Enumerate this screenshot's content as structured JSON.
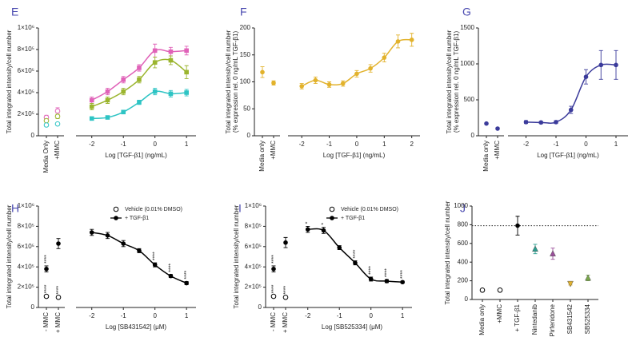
{
  "chart_data": [
    {
      "panel": "E",
      "type": "scatter",
      "ylabel": [
        "Total integrated intensity/cell number"
      ],
      "xlabel": "Log [TGF-β1] (ng/mL)",
      "control_categories": [
        "Media Only",
        "+MMC"
      ],
      "x": [
        -2,
        -1.5,
        -1,
        -0.5,
        0,
        0.5,
        1
      ],
      "xlim": [
        -2.5,
        1.3
      ],
      "xticks": [
        -2,
        -1,
        0,
        1
      ],
      "ylim": [
        0,
        1000000
      ],
      "yticks": [
        0,
        {
          "value": 200000,
          "label": "2×10⁵"
        },
        {
          "value": 400000,
          "label": "4×10⁵"
        },
        {
          "value": 600000,
          "label": "6×10⁵"
        },
        {
          "value": 800000,
          "label": "8×10⁵"
        },
        {
          "value": 1000000,
          "label": "1×10⁶"
        }
      ],
      "series": [
        {
          "color": "#e062b8",
          "marker": "square",
          "control_marker": "open-circle",
          "values": [
            330000,
            410000,
            520000,
            630000,
            790000,
            780000,
            790000
          ],
          "errors": [
            30000,
            30000,
            30000,
            30000,
            60000,
            40000,
            40000
          ],
          "control_values": [
            170000,
            230000
          ],
          "control_errors": [
            20000,
            30000
          ]
        },
        {
          "color": "#9bb52e",
          "marker": "square",
          "control_marker": "open-circle",
          "values": [
            270000,
            330000,
            410000,
            520000,
            680000,
            700000,
            590000
          ],
          "errors": [
            30000,
            30000,
            30000,
            30000,
            50000,
            40000,
            60000
          ],
          "control_values": [
            140000,
            180000
          ],
          "control_errors": [
            15000,
            20000
          ]
        },
        {
          "color": "#2ec4c4",
          "marker": "square",
          "control_marker": "open-circle",
          "values": [
            160000,
            170000,
            220000,
            310000,
            410000,
            390000,
            400000
          ],
          "errors": [
            10000,
            10000,
            15000,
            20000,
            30000,
            30000,
            30000
          ],
          "control_values": [
            100000,
            110000
          ],
          "control_errors": [
            10000,
            10000
          ]
        }
      ]
    },
    {
      "panel": "F",
      "type": "scatter",
      "ylabel": [
        "Total integrated intensity/cell number",
        "(% expression rel. 0 ng/mL TGF-β1)"
      ],
      "xlabel": "Log [TGF-β1] (ng/mL)",
      "control_categories": [
        "Media only",
        "+MMC"
      ],
      "x": [
        -2,
        -1.5,
        -1,
        -0.5,
        0,
        0.5,
        1,
        1.5,
        2
      ],
      "xlim": [
        -2.5,
        2.3
      ],
      "xticks": [
        -2,
        -1,
        0,
        1,
        2
      ],
      "ylim": [
        0,
        200
      ],
      "yticks": [
        0,
        50,
        100,
        150,
        200
      ],
      "series": [
        {
          "color": "#e2b22c",
          "marker": "circle",
          "values": [
            92,
            103,
            95,
            97,
            115,
            125,
            145,
            175,
            178
          ],
          "errors": [
            5,
            6,
            5,
            5,
            6,
            7,
            8,
            12,
            12
          ],
          "control_values": [
            118,
            98
          ],
          "control_errors": [
            10,
            4
          ]
        }
      ]
    },
    {
      "panel": "G",
      "type": "scatter",
      "ylabel": [
        "Total integrated intensity/cell number",
        "(% expression rel. 0 ng/mL TGF-β1)"
      ],
      "xlabel": "Log [TGF-β1] (ng/mL)",
      "control_categories": [
        "Media only",
        "+MMC"
      ],
      "x": [
        -2,
        -1.5,
        -1,
        -0.5,
        0,
        0.5,
        1
      ],
      "xlim": [
        -2.6,
        1.4
      ],
      "xticks": [
        -2,
        -1,
        0,
        1
      ],
      "ylim": [
        0,
        1500
      ],
      "yticks": [
        0,
        500,
        1000,
        1500
      ],
      "series": [
        {
          "color": "#3b3b9b",
          "marker": "circle",
          "values": [
            190,
            185,
            190,
            360,
            820,
            985,
            985
          ],
          "errors": [
            20,
            15,
            20,
            50,
            100,
            200,
            200
          ],
          "control_values": [
            170,
            100
          ],
          "control_errors": [
            10,
            10
          ]
        }
      ]
    },
    {
      "panel": "H",
      "type": "scatter",
      "legend": true,
      "ylabel": [
        "Total integrated intensity/cell number"
      ],
      "xlabel": "Log [SB431542] (μM)",
      "control_categories": [
        "- MMC",
        "+ MMC"
      ],
      "x": [
        -2,
        -1.5,
        -1,
        -0.5,
        0,
        0.5,
        1
      ],
      "xlim": [
        -2.5,
        1.3
      ],
      "xticks": [
        -2,
        -1,
        0,
        1
      ],
      "ylim": [
        0,
        1000000
      ],
      "yticks": [
        0,
        {
          "value": 200000,
          "label": "2×10⁵"
        },
        {
          "value": 400000,
          "label": "4×10⁵"
        },
        {
          "value": 600000,
          "label": "6×10⁵"
        },
        {
          "value": 800000,
          "label": "8×10⁵"
        },
        {
          "value": 1000000,
          "label": "1×10⁶"
        }
      ],
      "series": [
        {
          "name": "Vehicle (0.01% DMSO)",
          "color": "#000000",
          "marker": "open-circle",
          "control_values": [
            110000,
            100000
          ],
          "control_errors": [
            5000,
            5000
          ],
          "control_annotations": [
            "****",
            "****"
          ]
        },
        {
          "name": "+ TGF-β1",
          "color": "#000000",
          "marker": "circle",
          "values": [
            740000,
            710000,
            630000,
            560000,
            420000,
            310000,
            240000
          ],
          "errors": [
            30000,
            30000,
            30000,
            20000,
            20000,
            15000,
            15000
          ],
          "annotations": [
            null,
            null,
            null,
            null,
            "****",
            "****",
            "****"
          ],
          "control_values": [
            380000,
            630000
          ],
          "control_errors": [
            30000,
            50000
          ],
          "control_annotations": [
            "****",
            null
          ]
        }
      ]
    },
    {
      "panel": "I",
      "type": "scatter",
      "legend": true,
      "ylabel": [
        "Total integrated intensity/cell number"
      ],
      "xlabel": "Log [SB525334] (μM)",
      "control_categories": [
        "- MMC",
        "+ MMC"
      ],
      "x": [
        -2,
        -1.5,
        -1,
        -0.5,
        0,
        0.5,
        1
      ],
      "xlim": [
        -2.5,
        1.3
      ],
      "xticks": [
        -2,
        -1,
        0,
        1
      ],
      "ylim": [
        0,
        1000000
      ],
      "yticks": [
        0,
        {
          "value": 200000,
          "label": "2×10⁵"
        },
        {
          "value": 400000,
          "label": "4×10⁵"
        },
        {
          "value": 600000,
          "label": "6×10⁵"
        },
        {
          "value": 800000,
          "label": "8×10⁵"
        },
        {
          "value": 1000000,
          "label": "1×10⁶"
        }
      ],
      "series": [
        {
          "name": "Vehicle (0.01% DMSO)",
          "color": "#000000",
          "marker": "open-circle",
          "control_values": [
            110000,
            100000
          ],
          "control_errors": [
            5000,
            5000
          ],
          "control_annotations": [
            "****",
            "****"
          ]
        },
        {
          "name": "+ TGF-β1",
          "color": "#000000",
          "marker": "circle",
          "values": [
            770000,
            760000,
            590000,
            440000,
            280000,
            260000,
            250000
          ],
          "errors": [
            30000,
            30000,
            20000,
            20000,
            20000,
            15000,
            10000
          ],
          "annotations": [
            "*",
            "*",
            null,
            "****",
            "****",
            "****",
            "****"
          ],
          "control_values": [
            380000,
            640000
          ],
          "control_errors": [
            30000,
            50000
          ],
          "control_annotations": [
            "****",
            null
          ]
        }
      ]
    },
    {
      "panel": "J",
      "type": "dot",
      "ylabel": [
        "Total integrated intensity/cell number"
      ],
      "categories": [
        "Media only",
        "+MMC",
        "+ TGF-β1",
        "Nintedanib",
        "Pirfenidone",
        "SB431542",
        "SB525334"
      ],
      "values": [
        100,
        100,
        790,
        540,
        490,
        170,
        230
      ],
      "errors": [
        0,
        0,
        100,
        50,
        60,
        15,
        30
      ],
      "colors": [
        "#000000",
        "#000000",
        "#000000",
        "#2a9d8f",
        "#9b4f9b",
        "#e2b22c",
        "#7aa84a"
      ],
      "markers": [
        "open-circle",
        "open-circle",
        "circle",
        "triangle",
        "triangle",
        "triangle-down",
        "triangle"
      ],
      "reference_line": 790,
      "ylim": [
        0,
        1000
      ],
      "yticks": [
        0,
        200,
        400,
        600,
        800,
        1000
      ]
    }
  ]
}
